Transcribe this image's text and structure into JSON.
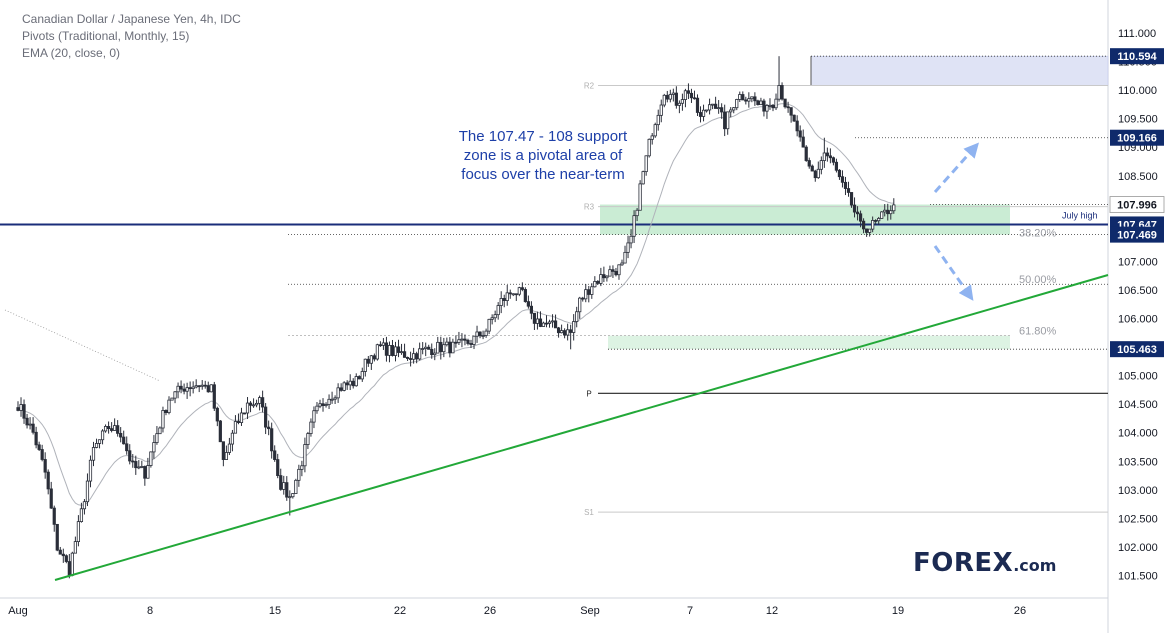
{
  "header": {
    "symbol_line": "Canadian Dollar / Japanese Yen, 4h, IDC",
    "pivots_line": "Pivots (Traditional, Monthly, 15)",
    "ema_line": "EMA (20, close, 0)"
  },
  "annotation": {
    "line1": "The 107.47 - 108 support",
    "line2": "zone is a pivotal area of",
    "line3": "focus over the near-term"
  },
  "logo": {
    "main": "FOREX",
    "suffix": ".com"
  },
  "colors": {
    "trendline": "#22a838",
    "support_line": "#1a2d7a",
    "zone_fill": "#9fdcb0",
    "price_label_bg": "#0f2a6b",
    "ema": "#b0b3ba",
    "candle": "#2a2e39",
    "arrow": "#8fb3f0",
    "annotation": "#1d3fa8",
    "resistance_box": "#dfe3f5"
  },
  "chart_data": {
    "type": "candlestick",
    "title": "Canadian Dollar / Japanese Yen, 4h, IDC",
    "ylim": [
      101.2,
      111.5
    ],
    "y_ticks": [
      "101.500",
      "102.000",
      "102.500",
      "103.000",
      "103.500",
      "104.000",
      "104.500",
      "105.000",
      "105.500",
      "106.000",
      "106.500",
      "107.000",
      "107.500",
      "108.000",
      "108.500",
      "109.000",
      "109.500",
      "110.000",
      "110.500",
      "111.000"
    ],
    "x_labels": [
      "Aug",
      "8",
      "15",
      "22",
      "26",
      "Sep",
      "7",
      "12",
      "19",
      "26"
    ],
    "price_labels": [
      {
        "value": 110.594,
        "text": "110.594"
      },
      {
        "value": 109.166,
        "text": "109.166"
      },
      {
        "value": 107.996,
        "text": "107.996",
        "style": "last"
      },
      {
        "value": 107.647,
        "text": "107.647"
      },
      {
        "value": 107.469,
        "text": "107.469"
      },
      {
        "value": 105.463,
        "text": "105.463"
      }
    ],
    "pivots": [
      {
        "label": "R2",
        "value": 110.08
      },
      {
        "label": "R3",
        "value": 107.96
      },
      {
        "label": "P",
        "value": 104.69
      },
      {
        "label": "S1",
        "value": 102.61
      }
    ],
    "fib_levels": [
      {
        "label": "38.20%",
        "value": 107.42
      },
      {
        "label": "50.00%",
        "value": 106.6
      },
      {
        "label": "61.80%",
        "value": 105.7
      }
    ],
    "july_high": {
      "label": "July high",
      "value": 107.647
    },
    "support_zone": [
      107.469,
      107.996
    ],
    "resistance_zone": [
      110.08,
      110.594
    ],
    "candles": [],
    "anchors": [
      {
        "t": 0,
        "v": 104.5
      },
      {
        "t": 5,
        "v": 104.0
      },
      {
        "t": 9,
        "v": 103.3
      },
      {
        "t": 13,
        "v": 102.0
      },
      {
        "t": 17,
        "v": 101.6
      },
      {
        "t": 21,
        "v": 102.6
      },
      {
        "t": 25,
        "v": 103.7
      },
      {
        "t": 30,
        "v": 104.1
      },
      {
        "t": 34,
        "v": 104.0
      },
      {
        "t": 38,
        "v": 103.4
      },
      {
        "t": 42,
        "v": 103.3
      },
      {
        "t": 46,
        "v": 104.0
      },
      {
        "t": 50,
        "v": 104.6
      },
      {
        "t": 55,
        "v": 104.8
      },
      {
        "t": 60,
        "v": 104.85
      },
      {
        "t": 64,
        "v": 104.75
      },
      {
        "t": 68,
        "v": 103.5
      },
      {
        "t": 72,
        "v": 104.1
      },
      {
        "t": 76,
        "v": 104.5
      },
      {
        "t": 80,
        "v": 104.55
      },
      {
        "t": 83,
        "v": 104.0
      },
      {
        "t": 87,
        "v": 103.1
      },
      {
        "t": 90,
        "v": 102.85
      },
      {
        "t": 94,
        "v": 103.5
      },
      {
        "t": 98,
        "v": 104.3
      },
      {
        "t": 102,
        "v": 104.6
      },
      {
        "t": 107,
        "v": 104.8
      },
      {
        "t": 112,
        "v": 104.9
      },
      {
        "t": 116,
        "v": 105.3
      },
      {
        "t": 120,
        "v": 105.5
      },
      {
        "t": 125,
        "v": 105.4
      },
      {
        "t": 130,
        "v": 105.35
      },
      {
        "t": 135,
        "v": 105.45
      },
      {
        "t": 140,
        "v": 105.5
      },
      {
        "t": 145,
        "v": 105.5
      },
      {
        "t": 150,
        "v": 105.6
      },
      {
        "t": 155,
        "v": 105.8
      },
      {
        "t": 160,
        "v": 106.3
      },
      {
        "t": 164,
        "v": 106.5
      },
      {
        "t": 167,
        "v": 106.4
      },
      {
        "t": 170,
        "v": 106.0
      },
      {
        "t": 175,
        "v": 105.9
      },
      {
        "t": 180,
        "v": 105.8
      },
      {
        "t": 183,
        "v": 105.75
      },
      {
        "t": 186,
        "v": 106.3
      },
      {
        "t": 190,
        "v": 106.6
      },
      {
        "t": 195,
        "v": 106.8
      },
      {
        "t": 200,
        "v": 106.9
      },
      {
        "t": 203,
        "v": 107.4
      },
      {
        "t": 206,
        "v": 108.3
      },
      {
        "t": 210,
        "v": 109.3
      },
      {
        "t": 214,
        "v": 110.0
      },
      {
        "t": 218,
        "v": 109.8
      },
      {
        "t": 222,
        "v": 110.0
      },
      {
        "t": 226,
        "v": 109.5
      },
      {
        "t": 230,
        "v": 109.85
      },
      {
        "t": 234,
        "v": 109.4
      },
      {
        "t": 238,
        "v": 109.9
      },
      {
        "t": 242,
        "v": 109.9
      },
      {
        "t": 246,
        "v": 109.7
      },
      {
        "t": 250,
        "v": 109.8
      },
      {
        "t": 252,
        "v": 110.1
      },
      {
        "t": 255,
        "v": 109.6
      },
      {
        "t": 258,
        "v": 109.3
      },
      {
        "t": 261,
        "v": 108.7
      },
      {
        "t": 264,
        "v": 108.5
      },
      {
        "t": 267,
        "v": 108.9
      },
      {
        "t": 270,
        "v": 108.7
      },
      {
        "t": 273,
        "v": 108.3
      },
      {
        "t": 276,
        "v": 108.0
      },
      {
        "t": 279,
        "v": 107.6
      },
      {
        "t": 282,
        "v": 107.6
      },
      {
        "t": 285,
        "v": 107.7
      },
      {
        "t": 288,
        "v": 107.9
      },
      {
        "t": 290,
        "v": 107.99
      }
    ]
  }
}
